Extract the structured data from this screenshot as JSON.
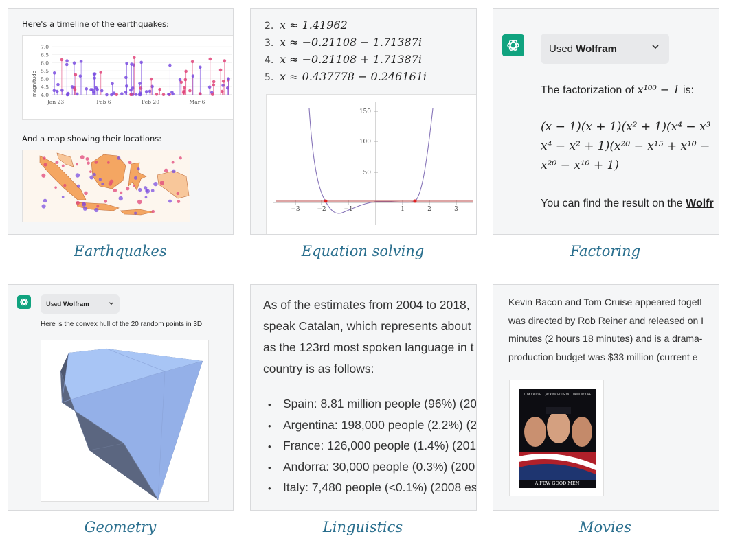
{
  "earthquakes": {
    "intro": "Here's a timeline of the earthquakes:",
    "ylabel": "magnitude",
    "yticks": [
      "7.0",
      "6.5",
      "6.0",
      "5.5",
      "5.0",
      "4.5",
      "4.0"
    ],
    "xticks": [
      "Jan 23",
      "Feb 6",
      "Feb 20",
      "Mar 6"
    ],
    "map_intro": "And a map showing their locations:",
    "caption": "Earthquakes"
  },
  "equations": {
    "items": [
      {
        "n": "2.",
        "expr": "x ≈ 1.41962"
      },
      {
        "n": "3.",
        "expr": "x ≈ −0.21108 − 1.71387i"
      },
      {
        "n": "4.",
        "expr": "x ≈ −0.21108 + 1.71387i"
      },
      {
        "n": "5.",
        "expr": "x ≈ 0.437778 − 0.246161i"
      }
    ],
    "plot_yticks": [
      "150",
      "100",
      "50"
    ],
    "plot_xticks": [
      "−3",
      "−2",
      "−1",
      "1",
      "2",
      "3"
    ],
    "caption": "Equation solving"
  },
  "factoring": {
    "used_prefix": "Used ",
    "used_tool": "Wolfram",
    "text_before": "The factorization of ",
    "expr_intro": "x¹⁰⁰ − 1",
    "text_after": " is:",
    "line1": "(x − 1)(x + 1)(x² + 1)(x⁴ − x³",
    "line2": "x⁴ − x² + 1)(x²⁰ − x¹⁵ + x¹⁰ −",
    "line3": "x²⁰ − x¹⁰ + 1)",
    "result_prefix": "You can find the result on the ",
    "result_link": "Wolfr",
    "caption": "Factoring"
  },
  "geometry": {
    "used_prefix": "Used ",
    "used_tool": "Wolfram",
    "text": "Here is the convex hull of the 20 random points in 3D:",
    "caption": "Geometry"
  },
  "linguistics": {
    "para": [
      "As of the estimates from 2004 to 2018,",
      "speak Catalan, which represents about",
      "as the 123rd most spoken language in t",
      "country is as follows:"
    ],
    "bullets": [
      "Spain: 8.81 million people (96%) (20",
      "Argentina: 198,000 people (2.2%) (2",
      "France: 126,000 people (1.4%) (201:",
      "Andorra: 30,000 people (0.3%) (200",
      "Italy: 7,480 people (<0.1%) (2008 es"
    ],
    "caption": "Linguistics"
  },
  "movies": {
    "lines": [
      "Kevin Bacon and Tom Cruise appeared togetl",
      "was directed by Rob Reiner and released on I",
      "minutes (2 hours 18 minutes) and is a drama-",
      "production budget was $33 million (current e"
    ],
    "poster_title": "A FEW GOOD MEN",
    "poster_names": [
      "TOM CRUISE",
      "JACK NICHOLSON",
      "DEMI MOORE"
    ],
    "caption": "Movies"
  },
  "colors": {
    "caption": "#2a6f8e",
    "card_bg": "#f5f6f7",
    "gpt_green": "#10a37f",
    "quake_purple": "#7b4fe0",
    "quake_pink": "#e0457a"
  }
}
